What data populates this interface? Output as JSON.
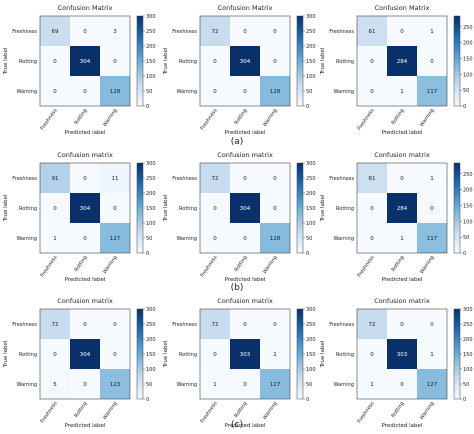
{
  "section_labels": [
    "(a)",
    "(b)",
    "(c)"
  ],
  "colorbar_ticks": {
    "cb300": [
      "300",
      "250",
      "200",
      "150",
      "100",
      "50",
      "0"
    ],
    "cb250": [
      "250",
      "200",
      "150",
      "100",
      "50",
      "0"
    ]
  },
  "chart_data": [
    {
      "type": "heatmap",
      "title": "Confusion Matrix",
      "xlabel": "Predicted label",
      "ylabel": "True label",
      "row_labels": [
        "Freshness",
        "Rotting",
        "Warning"
      ],
      "col_labels": [
        "Freshness",
        "Rotting",
        "Warning"
      ],
      "values": [
        [
          69,
          0,
          3
        ],
        [
          0,
          304,
          0
        ],
        [
          0,
          0,
          128
        ]
      ],
      "colorbar": "cb300",
      "vmax": 300
    },
    {
      "type": "heatmap",
      "title": "Confusion Matrix",
      "xlabel": "Predicted label",
      "ylabel": "True label",
      "row_labels": [
        "Freshness",
        "Rotting",
        "Warning"
      ],
      "col_labels": [
        "Freshness",
        "Rotting",
        "Warning"
      ],
      "values": [
        [
          72,
          0,
          0
        ],
        [
          0,
          304,
          0
        ],
        [
          0,
          0,
          128
        ]
      ],
      "colorbar": "cb300",
      "vmax": 300
    },
    {
      "type": "heatmap",
      "title": "Confusion Matrix",
      "xlabel": "Predicted label",
      "ylabel": "True label",
      "row_labels": [
        "Freshness",
        "Rotting",
        "Warning"
      ],
      "col_labels": [
        "Freshness",
        "Rotting",
        "Warning"
      ],
      "values": [
        [
          61,
          0,
          1
        ],
        [
          0,
          284,
          0
        ],
        [
          0,
          1,
          117
        ]
      ],
      "colorbar": "cb250",
      "vmax": 284
    },
    {
      "type": "heatmap",
      "title": "Confusion matrix",
      "xlabel": "Predicted label",
      "ylabel": "True label",
      "row_labels": [
        "Freshness",
        "Rotting",
        "Warning"
      ],
      "col_labels": [
        "Freshness",
        "Rotting",
        "Warning"
      ],
      "values": [
        [
          91,
          0,
          11
        ],
        [
          0,
          304,
          0
        ],
        [
          1,
          0,
          127
        ]
      ],
      "colorbar": "cb300",
      "vmax": 300
    },
    {
      "type": "heatmap",
      "title": "Confusion matrix",
      "xlabel": "Predicted label",
      "ylabel": "True label",
      "row_labels": [
        "Freshness",
        "Rotting",
        "Warning"
      ],
      "col_labels": [
        "Freshness",
        "Rotting",
        "Warning"
      ],
      "values": [
        [
          72,
          0,
          0
        ],
        [
          0,
          304,
          0
        ],
        [
          0,
          0,
          128
        ]
      ],
      "colorbar": "cb300",
      "vmax": 300
    },
    {
      "type": "heatmap",
      "title": "Confusion matrix",
      "xlabel": "Predicted label",
      "ylabel": "True label",
      "row_labels": [
        "Freshness",
        "Rotting",
        "Warning"
      ],
      "col_labels": [
        "Freshness",
        "Rotting",
        "Warning"
      ],
      "values": [
        [
          61,
          0,
          1
        ],
        [
          0,
          284,
          0
        ],
        [
          0,
          1,
          117
        ]
      ],
      "colorbar": "cb250",
      "vmax": 284
    },
    {
      "type": "heatmap",
      "title": "Confusion matrix",
      "xlabel": "Predicted label",
      "ylabel": "True label",
      "row_labels": [
        "Freshness",
        "Rotting",
        "Warning"
      ],
      "col_labels": [
        "Freshness",
        "Rotting",
        "Warning"
      ],
      "values": [
        [
          72,
          0,
          0
        ],
        [
          0,
          304,
          0
        ],
        [
          5,
          0,
          123
        ]
      ],
      "colorbar": "cb300",
      "vmax": 300
    },
    {
      "type": "heatmap",
      "title": "Confusion matrix",
      "xlabel": "Predicted label",
      "ylabel": "True label",
      "row_labels": [
        "Freshness",
        "Rotting",
        "Warning"
      ],
      "col_labels": [
        "Freshness",
        "Rotting",
        "Warning"
      ],
      "values": [
        [
          72,
          0,
          0
        ],
        [
          0,
          303,
          1
        ],
        [
          1,
          0,
          127
        ]
      ],
      "colorbar": "cb300",
      "vmax": 300
    },
    {
      "type": "heatmap",
      "title": "Confusion matrix",
      "xlabel": "Predicted label",
      "ylabel": "True label",
      "row_labels": [
        "Freshness",
        "Rotting",
        "Warning"
      ],
      "col_labels": [
        "Freshness",
        "Rotting",
        "Warning"
      ],
      "values": [
        [
          72,
          0,
          0
        ],
        [
          0,
          303,
          1
        ],
        [
          1,
          0,
          127
        ]
      ],
      "colorbar": "cb300",
      "vmax": 300
    }
  ]
}
